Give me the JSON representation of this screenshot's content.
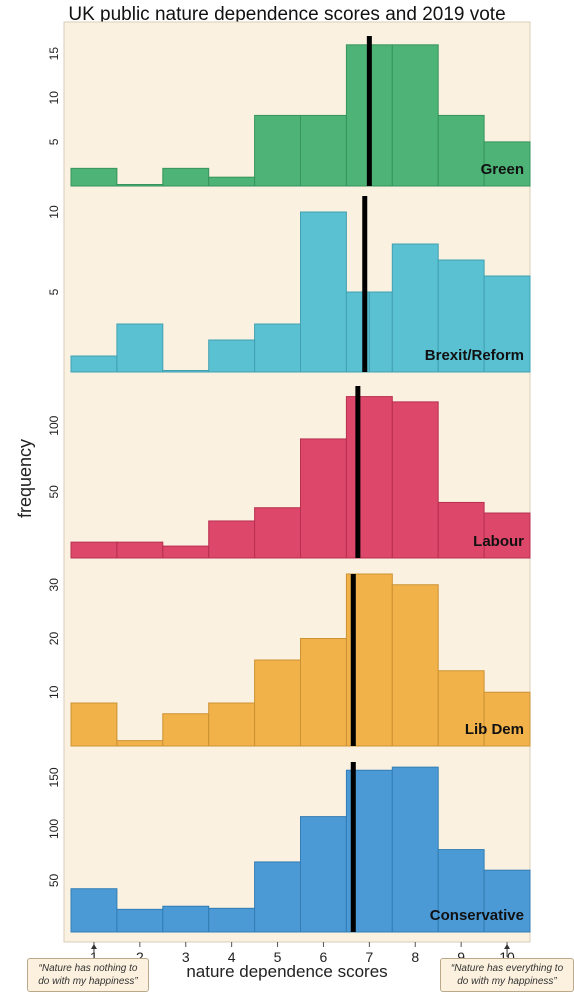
{
  "title": "UK public nature dependence scores and 2019 vote",
  "notes": {
    "left": "“Nature has nothing to do with my happiness”",
    "right": "“Nature has everything to do with my happiness”"
  },
  "chart_data": {
    "type": "bar",
    "title": "UK public nature dependence scores and 2019 vote",
    "xlabel": "nature dependence scores",
    "ylabel": "frequency",
    "x": [
      1,
      2,
      3,
      4,
      5,
      6,
      7,
      8,
      9,
      10
    ],
    "xlim": [
      0.5,
      10.5
    ],
    "colors": {
      "Green": "#3fae6c",
      "Brexit/Reform": "#4cbdd0",
      "Labour": "#d9385f",
      "Lib Dem": "#f0ac3c",
      "Conservative": "#3c93d4",
      "background": "#fbf1e0"
    },
    "panels": [
      {
        "name": "Green",
        "bins": [
          [
            0.5,
            1.5,
            2
          ],
          [
            1.5,
            2.5,
            0
          ],
          [
            2.5,
            3.5,
            2
          ],
          [
            3.5,
            4.5,
            1
          ],
          [
            4.5,
            5.5,
            8
          ],
          [
            5.5,
            6.5,
            8
          ],
          [
            6.5,
            7.5,
            16
          ],
          [
            7.5,
            8.5,
            16
          ],
          [
            8.5,
            9.5,
            8
          ],
          [
            9.5,
            10.5,
            5
          ]
        ],
        "ylim": [
          0,
          17
        ],
        "yticks": [
          5,
          10,
          15
        ],
        "median": 7.0
      },
      {
        "name": "Brexit/Reform",
        "bins": [
          [
            0.5,
            1.5,
            1
          ],
          [
            1.5,
            2.5,
            3
          ],
          [
            2.5,
            3.5,
            0
          ],
          [
            3.5,
            4.5,
            2
          ],
          [
            4.5,
            5.5,
            3
          ],
          [
            5.5,
            6.5,
            10
          ],
          [
            6.5,
            7.0,
            5
          ],
          [
            7.0,
            7.5,
            5
          ],
          [
            7.5,
            8.5,
            8
          ],
          [
            8.5,
            9.5,
            7
          ],
          [
            9.5,
            10.5,
            6
          ]
        ],
        "ylim": [
          0,
          11
        ],
        "yticks": [
          5,
          10
        ],
        "median": 6.9
      },
      {
        "name": "Labour",
        "bins": [
          [
            0.5,
            1.5,
            12
          ],
          [
            1.5,
            2.5,
            12
          ],
          [
            2.5,
            3.5,
            9
          ],
          [
            3.5,
            4.5,
            28
          ],
          [
            4.5,
            5.5,
            38
          ],
          [
            5.5,
            6.5,
            90
          ],
          [
            6.5,
            7.5,
            122
          ],
          [
            7.5,
            8.5,
            118
          ],
          [
            8.5,
            9.5,
            42
          ],
          [
            9.5,
            10.5,
            34
          ]
        ],
        "ylim": [
          0,
          130
        ],
        "yticks": [
          50,
          100
        ],
        "median": 6.75
      },
      {
        "name": "Lib Dem",
        "bins": [
          [
            0.5,
            1.5,
            8
          ],
          [
            1.5,
            2.5,
            1
          ],
          [
            2.5,
            3.5,
            6
          ],
          [
            3.5,
            4.5,
            8
          ],
          [
            4.5,
            5.5,
            16
          ],
          [
            5.5,
            6.5,
            20
          ],
          [
            6.5,
            7.5,
            32
          ],
          [
            7.5,
            8.5,
            30
          ],
          [
            8.5,
            9.5,
            14
          ],
          [
            9.5,
            10.5,
            10
          ]
        ],
        "ylim": [
          0,
          32
        ],
        "yticks": [
          10,
          20,
          30
        ],
        "median": 6.65
      },
      {
        "name": "Conservative",
        "bins": [
          [
            0.5,
            1.5,
            42
          ],
          [
            1.5,
            2.5,
            22
          ],
          [
            2.5,
            3.5,
            25
          ],
          [
            3.5,
            4.5,
            23
          ],
          [
            4.5,
            5.5,
            68
          ],
          [
            5.5,
            6.5,
            112
          ],
          [
            6.5,
            7.5,
            157
          ],
          [
            7.5,
            8.5,
            160
          ],
          [
            8.5,
            9.5,
            80
          ],
          [
            9.5,
            10.5,
            60
          ]
        ],
        "ylim": [
          0,
          165
        ],
        "yticks": [
          50,
          100,
          150
        ],
        "median": 6.65
      }
    ]
  }
}
